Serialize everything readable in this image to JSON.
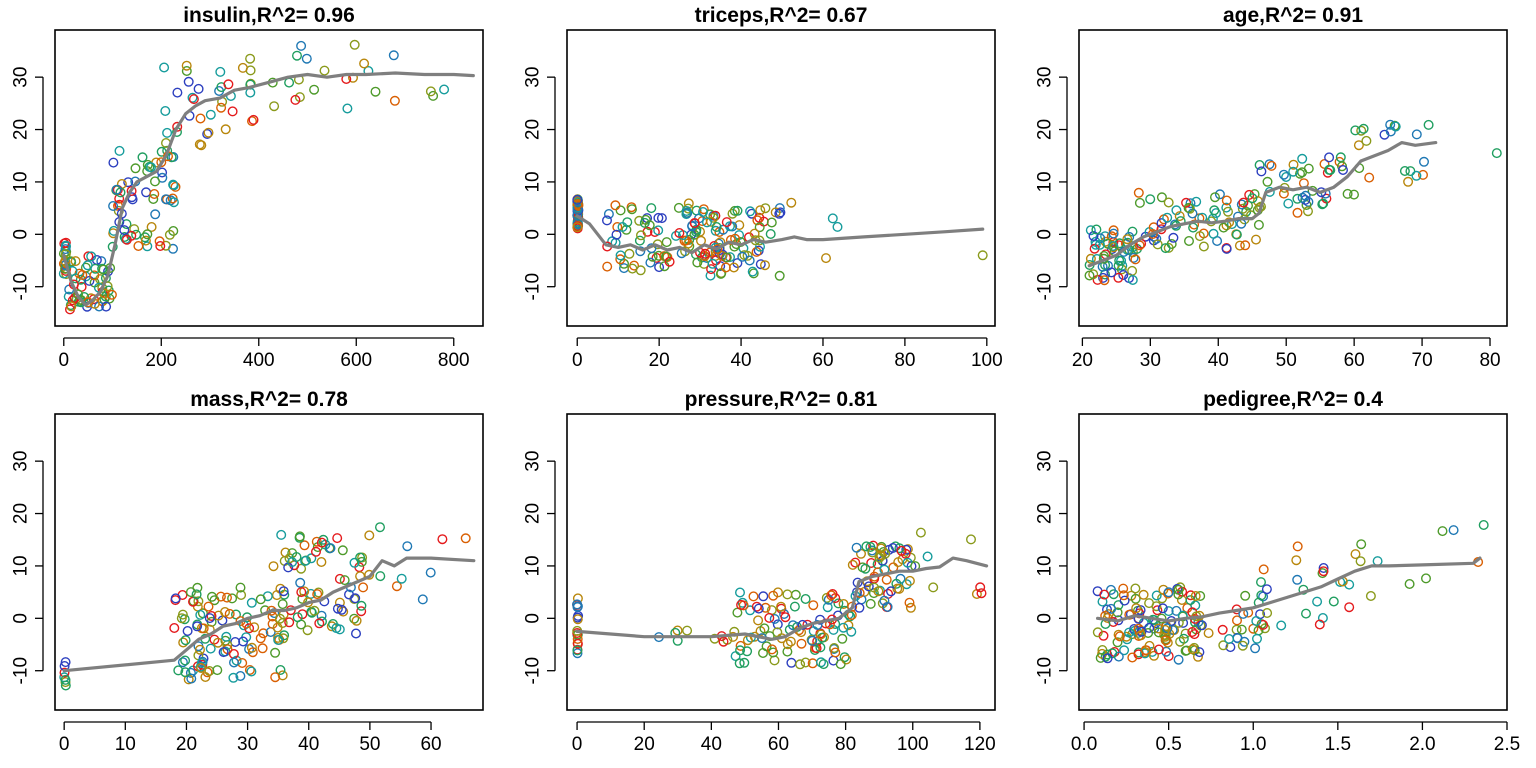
{
  "chart_data": [
    {
      "type": "scatter",
      "title": "insulin,R^2= 0.96",
      "xticks": [
        0,
        200,
        400,
        600,
        800
      ],
      "yticks": [
        -10,
        0,
        10,
        20,
        30
      ],
      "xlim": [
        -18,
        860
      ],
      "ylim": [
        -17.5,
        39
      ],
      "smooth": [
        [
          0,
          -4
        ],
        [
          15,
          -9
        ],
        [
          30,
          -12
        ],
        [
          45,
          -13.5
        ],
        [
          60,
          -12.5
        ],
        [
          75,
          -11
        ],
        [
          90,
          -8
        ],
        [
          105,
          -2
        ],
        [
          120,
          5
        ],
        [
          135,
          8
        ],
        [
          150,
          10
        ],
        [
          170,
          11
        ],
        [
          190,
          12
        ],
        [
          210,
          15
        ],
        [
          230,
          20
        ],
        [
          250,
          23
        ],
        [
          270,
          24.5
        ],
        [
          290,
          25.5
        ],
        [
          320,
          26
        ],
        [
          350,
          27.5
        ],
        [
          380,
          28
        ],
        [
          420,
          29
        ],
        [
          460,
          30
        ],
        [
          500,
          30.5
        ],
        [
          540,
          30
        ],
        [
          580,
          30.5
        ],
        [
          620,
          30.5
        ],
        [
          680,
          30.8
        ],
        [
          740,
          30.5
        ],
        [
          800,
          30.5
        ],
        [
          840,
          30.3
        ]
      ],
      "point_groups": [
        {
          "n": 18,
          "x": [
            0,
            5
          ],
          "y": [
            -8,
            -1
          ]
        },
        {
          "n": 60,
          "x": [
            10,
            100
          ],
          "y": [
            -15,
            -4
          ]
        },
        {
          "n": 70,
          "x": [
            100,
            230
          ],
          "y": [
            -3,
            16
          ]
        },
        {
          "n": 35,
          "x": [
            200,
            400
          ],
          "y": [
            17,
            33
          ]
        },
        {
          "n": 22,
          "x": [
            380,
            700
          ],
          "y": [
            24,
            37
          ]
        },
        {
          "n": 3,
          "x": [
            740,
            845
          ],
          "y": [
            26,
            30
          ]
        }
      ]
    },
    {
      "type": "scatter",
      "title": "triceps,R^2= 0.67",
      "xticks": [
        0,
        20,
        40,
        60,
        80,
        100
      ],
      "yticks": [
        -10,
        0,
        10,
        20,
        30
      ],
      "xlim": [
        -2.5,
        102
      ],
      "ylim": [
        -17.5,
        39
      ],
      "smooth": [
        [
          0,
          3.5
        ],
        [
          3,
          2
        ],
        [
          7,
          -2
        ],
        [
          10,
          -2.5
        ],
        [
          13,
          -2
        ],
        [
          16,
          -3
        ],
        [
          19,
          -2
        ],
        [
          22,
          -3
        ],
        [
          25,
          -2.5
        ],
        [
          28,
          -3.5
        ],
        [
          31,
          -2
        ],
        [
          34,
          -2.8
        ],
        [
          37,
          -1.5
        ],
        [
          40,
          -2
        ],
        [
          43,
          -1
        ],
        [
          46,
          -1.5
        ],
        [
          50,
          -1
        ],
        [
          53,
          -0.5
        ],
        [
          56,
          -1
        ],
        [
          60,
          -1
        ],
        [
          70,
          -0.5
        ],
        [
          80,
          0
        ],
        [
          90,
          0.5
        ],
        [
          99,
          1
        ]
      ],
      "point_groups": [
        {
          "n": 45,
          "x": [
            0,
            0.3
          ],
          "y": [
            1,
            7
          ]
        },
        {
          "n": 90,
          "x": [
            7,
            35
          ],
          "y": [
            -7,
            6
          ]
        },
        {
          "n": 80,
          "x": [
            28,
            50
          ],
          "y": [
            -8,
            5
          ]
        },
        {
          "n": 4,
          "x": [
            52,
            64
          ],
          "y": [
            -7,
            7
          ]
        },
        {
          "n": 1,
          "x": [
            99,
            99
          ],
          "y": [
            -4,
            -4
          ]
        }
      ]
    },
    {
      "type": "scatter",
      "title": "age,R^2= 0.91",
      "xticks": [
        20,
        30,
        40,
        50,
        60,
        70,
        80
      ],
      "yticks": [
        -10,
        0,
        10,
        20,
        30
      ],
      "xlim": [
        19.5,
        82.5
      ],
      "ylim": [
        -17.5,
        39
      ],
      "smooth": [
        [
          21,
          -6
        ],
        [
          23,
          -5
        ],
        [
          25,
          -4
        ],
        [
          27,
          -2
        ],
        [
          29,
          -0.5
        ],
        [
          31,
          0.5
        ],
        [
          33,
          1.5
        ],
        [
          35,
          2
        ],
        [
          37,
          2.5
        ],
        [
          39,
          2.2
        ],
        [
          41,
          2.5
        ],
        [
          43,
          3
        ],
        [
          45,
          3
        ],
        [
          46,
          4
        ],
        [
          47,
          8
        ],
        [
          49,
          9
        ],
        [
          51,
          8.5
        ],
        [
          53,
          9
        ],
        [
          55,
          8
        ],
        [
          57,
          9
        ],
        [
          59,
          11
        ],
        [
          61,
          14
        ],
        [
          63,
          15
        ],
        [
          65,
          16
        ],
        [
          67,
          17.5
        ],
        [
          69,
          17
        ],
        [
          72,
          17.5
        ]
      ],
      "point_groups": [
        {
          "n": 60,
          "x": [
            21,
            28
          ],
          "y": [
            -9,
            1
          ]
        },
        {
          "n": 80,
          "x": [
            28,
            46
          ],
          "y": [
            -3,
            8
          ]
        },
        {
          "n": 45,
          "x": [
            46,
            60
          ],
          "y": [
            4,
            15
          ]
        },
        {
          "n": 20,
          "x": [
            60,
            72
          ],
          "y": [
            10,
            23
          ]
        },
        {
          "n": 1,
          "x": [
            81,
            81
          ],
          "y": [
            15.5,
            15.5
          ]
        }
      ]
    },
    {
      "type": "scatter",
      "title": "mass,R^2= 0.78",
      "xticks": [
        0,
        10,
        20,
        30,
        40,
        50,
        60
      ],
      "yticks": [
        -10,
        0,
        10,
        20,
        30
      ],
      "xlim": [
        -1.5,
        68.5
      ],
      "ylim": [
        -17.5,
        39
      ],
      "smooth": [
        [
          0,
          -10
        ],
        [
          18,
          -8
        ],
        [
          20,
          -6
        ],
        [
          22,
          -4
        ],
        [
          24,
          -3
        ],
        [
          26,
          -1.5
        ],
        [
          28,
          -1
        ],
        [
          30,
          0
        ],
        [
          32,
          0.5
        ],
        [
          34,
          1.5
        ],
        [
          36,
          1.5
        ],
        [
          38,
          2
        ],
        [
          40,
          3
        ],
        [
          42,
          3.5
        ],
        [
          44,
          5
        ],
        [
          46,
          6
        ],
        [
          48,
          7
        ],
        [
          50,
          8
        ],
        [
          52,
          11
        ],
        [
          54,
          10
        ],
        [
          56,
          11.5
        ],
        [
          60,
          11.5
        ],
        [
          67,
          11
        ]
      ],
      "point_groups": [
        {
          "n": 7,
          "x": [
            0,
            0.3
          ],
          "y": [
            -13,
            -7
          ]
        },
        {
          "n": 120,
          "x": [
            18,
            36
          ],
          "y": [
            -12,
            6
          ]
        },
        {
          "n": 80,
          "x": [
            34,
            50
          ],
          "y": [
            -3,
            16
          ]
        },
        {
          "n": 9,
          "x": [
            50,
            67
          ],
          "y": [
            2,
            20
          ]
        }
      ]
    },
    {
      "type": "scatter",
      "title": "pressure,R^2= 0.81",
      "xticks": [
        0,
        20,
        40,
        60,
        80,
        100,
        120
      ],
      "yticks": [
        -10,
        0,
        10,
        20,
        30
      ],
      "xlim": [
        -3,
        124.5
      ],
      "ylim": [
        -17.5,
        39
      ],
      "smooth": [
        [
          0,
          -2.5
        ],
        [
          10,
          -3
        ],
        [
          20,
          -3.5
        ],
        [
          30,
          -3.5
        ],
        [
          40,
          -3.5
        ],
        [
          50,
          -3
        ],
        [
          58,
          -4
        ],
        [
          62,
          -3.5
        ],
        [
          66,
          -2
        ],
        [
          70,
          -1
        ],
        [
          74,
          -0.5
        ],
        [
          78,
          0
        ],
        [
          82,
          2
        ],
        [
          84,
          7
        ],
        [
          88,
          8
        ],
        [
          92,
          8.5
        ],
        [
          96,
          9
        ],
        [
          100,
          9
        ],
        [
          104,
          9.5
        ],
        [
          108,
          9.8
        ],
        [
          112,
          11.5
        ],
        [
          116,
          11
        ],
        [
          122,
          10
        ]
      ],
      "point_groups": [
        {
          "n": 18,
          "x": [
            0,
            0.3
          ],
          "y": [
            -7,
            4
          ]
        },
        {
          "n": 9,
          "x": [
            24,
            46
          ],
          "y": [
            -5,
            -1
          ]
        },
        {
          "n": 110,
          "x": [
            46,
            82
          ],
          "y": [
            -9,
            5
          ]
        },
        {
          "n": 70,
          "x": [
            82,
            100
          ],
          "y": [
            2,
            14
          ]
        },
        {
          "n": 8,
          "x": [
            100,
            122
          ],
          "y": [
            3,
            17.5
          ]
        }
      ]
    },
    {
      "type": "scatter",
      "title": "pedigree,R^2= 0.4",
      "xticks": [
        "0.0",
        "0.5",
        "1.0",
        "1.5",
        "2.0",
        "2.5"
      ],
      "xtick_values": [
        0,
        0.5,
        1,
        1.5,
        2,
        2.5
      ],
      "yticks": [
        -10,
        0,
        10,
        20,
        30
      ],
      "xlim": [
        -0.03,
        2.5
      ],
      "ylim": [
        -17.5,
        39
      ],
      "smooth": [
        [
          0.08,
          0
        ],
        [
          0.2,
          -0.5
        ],
        [
          0.3,
          0.5
        ],
        [
          0.4,
          0
        ],
        [
          0.5,
          -0.5
        ],
        [
          0.6,
          0
        ],
        [
          0.7,
          0.3
        ],
        [
          0.8,
          1
        ],
        [
          0.9,
          1.5
        ],
        [
          1.0,
          2
        ],
        [
          1.1,
          3
        ],
        [
          1.2,
          4
        ],
        [
          1.3,
          5
        ],
        [
          1.4,
          6
        ],
        [
          1.5,
          7.5
        ],
        [
          1.6,
          9
        ],
        [
          1.7,
          10
        ],
        [
          1.8,
          10
        ],
        [
          2.0,
          10.2
        ],
        [
          2.3,
          10.5
        ],
        [
          2.34,
          11.5
        ]
      ],
      "point_groups": [
        {
          "n": 110,
          "x": [
            0.08,
            0.7
          ],
          "y": [
            -8,
            6
          ]
        },
        {
          "n": 60,
          "x": [
            0.3,
            1.1
          ],
          "y": [
            -6,
            5
          ]
        },
        {
          "n": 28,
          "x": [
            1.0,
            1.8
          ],
          "y": [
            -2,
            15
          ]
        },
        {
          "n": 6,
          "x": [
            1.9,
            2.42
          ],
          "y": [
            5,
            19
          ]
        }
      ]
    }
  ]
}
